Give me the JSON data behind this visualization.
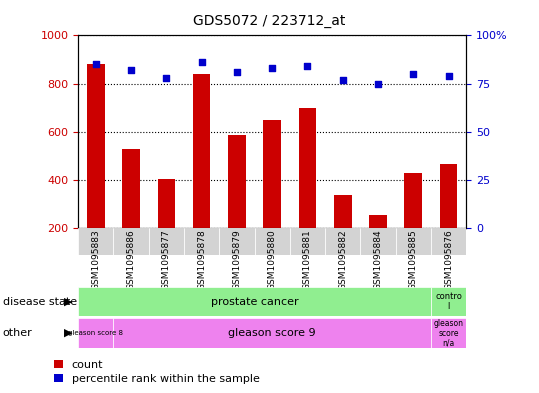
{
  "title": "GDS5072 / 223712_at",
  "samples": [
    "GSM1095883",
    "GSM1095886",
    "GSM1095877",
    "GSM1095878",
    "GSM1095879",
    "GSM1095880",
    "GSM1095881",
    "GSM1095882",
    "GSM1095884",
    "GSM1095885",
    "GSM1095876"
  ],
  "counts": [
    880,
    530,
    405,
    840,
    585,
    648,
    700,
    335,
    255,
    430,
    465
  ],
  "percentile_ranks": [
    85,
    82,
    78,
    86,
    81,
    83,
    84,
    77,
    75,
    80,
    79
  ],
  "ylim_left": [
    200,
    1000
  ],
  "ylim_right": [
    0,
    100
  ],
  "yticks_left": [
    200,
    400,
    600,
    800,
    1000
  ],
  "yticks_right": [
    0,
    25,
    50,
    75,
    100
  ],
  "bar_color": "#cc0000",
  "dot_color": "#0000cc",
  "plot_bg_color": "#ffffff",
  "disease_color": "#90ee90",
  "other_color": "#ee82ee",
  "annot_bg_color": "#d3d3d3",
  "ylabel_left_color": "#cc0000",
  "ylabel_right_color": "#0000cc",
  "row_label_disease": "disease state",
  "row_label_other": "other",
  "legend_count": "count",
  "legend_percentile": "percentile rank within the sample"
}
